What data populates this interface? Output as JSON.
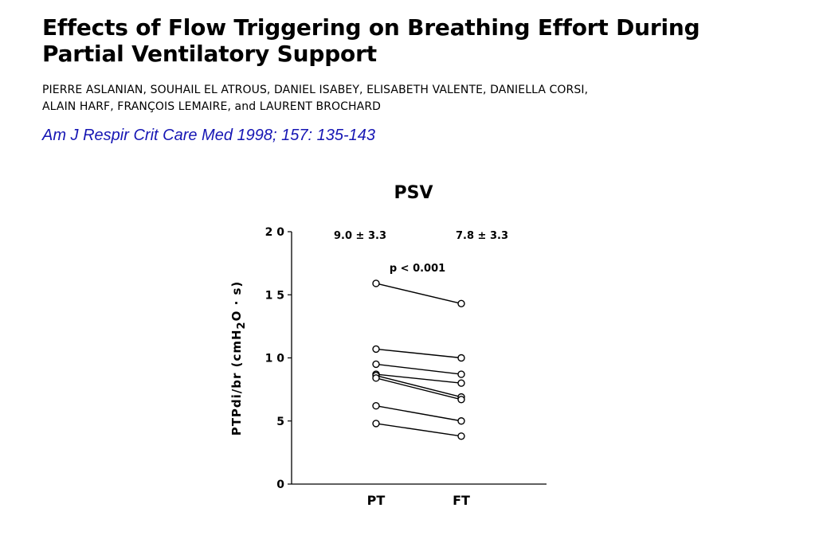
{
  "paper": {
    "title_line1": "Effects of Flow Triggering on Breathing Effort During",
    "title_line2": "Partial Ventilatory Support",
    "authors_line1": "PIERRE ASLANIAN,  SOUHAIL EL ATROUS, DANIEL ISABEY, ELISABETH VALENTE, DANIELLA CORSI,",
    "authors_line2": "ALAIN HARF, FRANÇOIS LEMAIRE, and LAURENT BROCHARD",
    "citation": "Am J Respir Crit Care Med 1998; 157: 135-143"
  },
  "chart_data": {
    "type": "line",
    "title": "PSV",
    "ylabel": "PTPdi/br  (cmH2O · s)",
    "ylabel_parts": {
      "main": "PTPdi/br  (cmH",
      "sub": "2",
      "tail": "O · s)"
    },
    "xlabel": "",
    "categories": [
      "PT",
      "FT"
    ],
    "ylim": [
      0,
      20
    ],
    "yticks": [
      0,
      5,
      10,
      15,
      20
    ],
    "ytick_labels": [
      "0",
      "5",
      "1 0",
      "1 5",
      "2 0"
    ],
    "grid": false,
    "paired_series": [
      {
        "values": [
          15.9,
          14.3
        ]
      },
      {
        "values": [
          10.7,
          10.0
        ]
      },
      {
        "values": [
          9.5,
          8.7
        ]
      },
      {
        "values": [
          8.7,
          8.0
        ]
      },
      {
        "values": [
          8.6,
          6.9
        ]
      },
      {
        "values": [
          8.4,
          6.7
        ]
      },
      {
        "values": [
          6.2,
          5.0
        ]
      },
      {
        "values": [
          4.8,
          3.8
        ]
      }
    ],
    "annotations": {
      "pt_summary": "9.0 ± 3.3",
      "ft_summary": "7.8 ± 3.3",
      "p_value": "p < 0.001"
    }
  }
}
